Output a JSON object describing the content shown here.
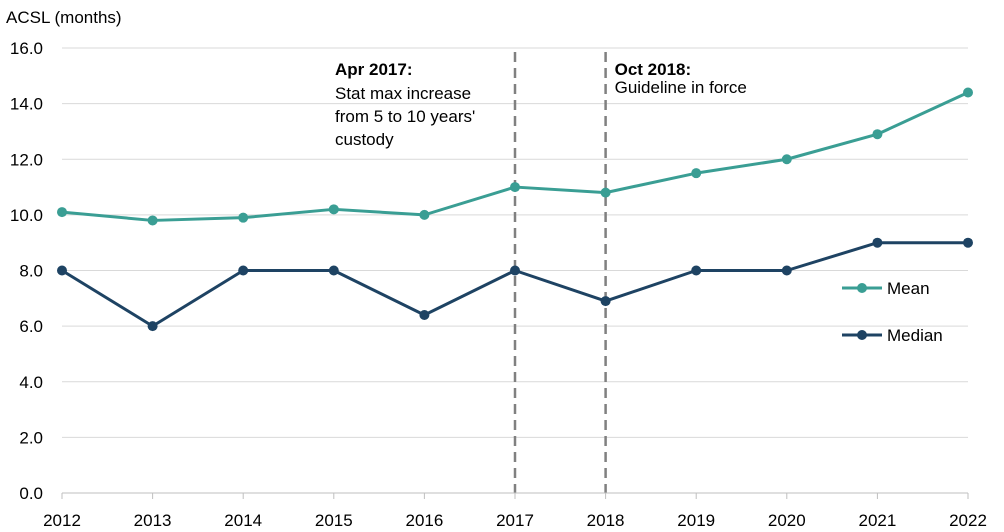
{
  "chart_data": {
    "type": "line",
    "ylabel": "ACSL (months)",
    "xlabel": "",
    "title": "",
    "categories": [
      "2012",
      "2013",
      "2014",
      "2015",
      "2016",
      "2017",
      "2018",
      "2019",
      "2020",
      "2021",
      "2022"
    ],
    "ylim": [
      0,
      16
    ],
    "yticks": [
      "0.0",
      "2.0",
      "4.0",
      "6.0",
      "8.0",
      "10.0",
      "12.0",
      "14.0",
      "16.0"
    ],
    "grid": "horizontal",
    "legend_position": "right",
    "series": [
      {
        "name": "Mean",
        "color": "#3a9e94",
        "values": [
          10.1,
          9.8,
          9.9,
          10.2,
          10.0,
          11.0,
          10.8,
          11.5,
          12.0,
          12.9,
          14.4
        ]
      },
      {
        "name": "Median",
        "color": "#1e4363",
        "values": [
          8.0,
          6.0,
          8.0,
          8.0,
          6.4,
          8.0,
          6.9,
          8.0,
          8.0,
          9.0,
          9.0
        ]
      }
    ],
    "annotations": [
      {
        "x": "2017",
        "heading": "Apr 2017:",
        "lines": [
          "Stat max increase",
          "from 5 to 10 years'",
          "custody"
        ]
      },
      {
        "x": "2018",
        "heading": "Oct 2018:",
        "lines": [
          "Guideline in force"
        ]
      }
    ]
  },
  "colors": {
    "grid": "#d9d9d9",
    "axis": "#bfbfbf",
    "marker_line": "#808080"
  }
}
